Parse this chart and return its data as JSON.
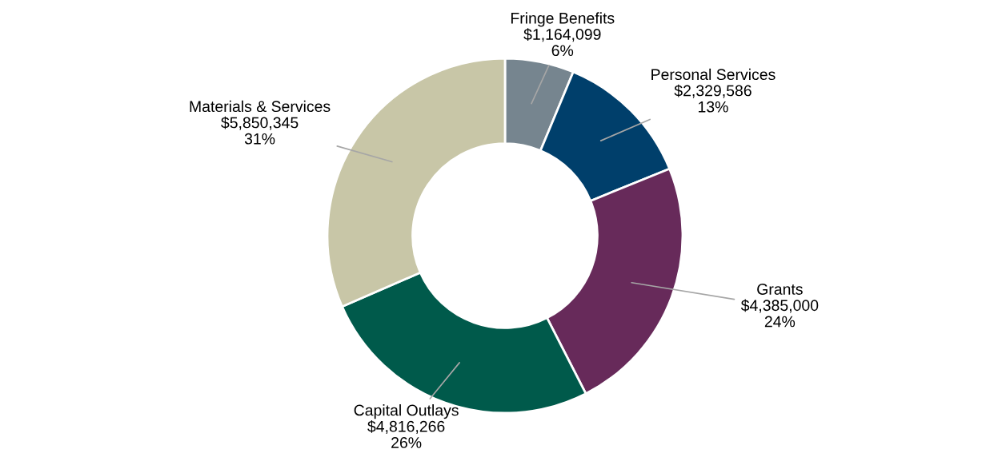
{
  "chart_data": {
    "type": "donut",
    "categories": [
      "Fringe Benefits",
      "Personal Services",
      "Grants",
      "Capital Outlays",
      "Materials & Services"
    ],
    "values": [
      1164099,
      2329586,
      4385000,
      4816266,
      5850345
    ],
    "colors": [
      "#76858f",
      "#003f6b",
      "#672a5a",
      "#005a4b",
      "#c8c6a7"
    ],
    "value_labels": [
      "$1,164,099\n6%",
      "$2,329,586\n13%",
      "$4,385,000\n24%",
      "$4,816,266\n26%",
      "$5,850,345\n31%"
    ],
    "legend": false
  }
}
